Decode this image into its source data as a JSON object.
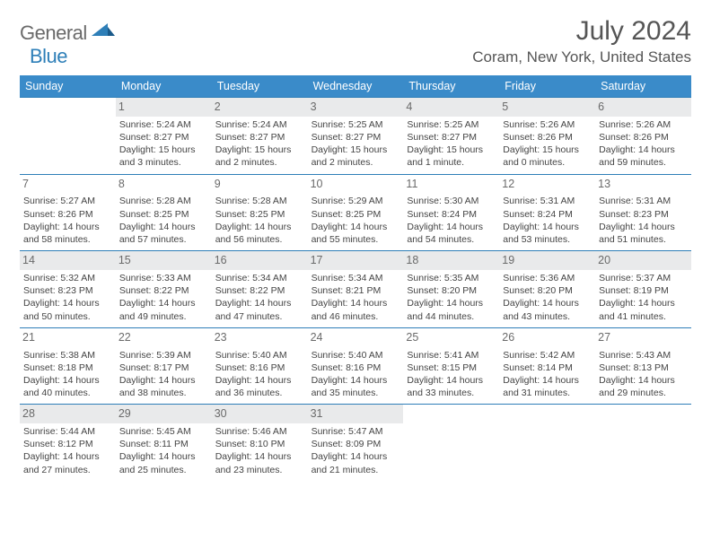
{
  "branding": {
    "logo_general": "General",
    "logo_blue": "Blue",
    "logo_color_gray": "#6a6a6a",
    "logo_color_blue": "#2e7fb8"
  },
  "title": {
    "month": "July 2024",
    "location": "Coram, New York, United States"
  },
  "colors": {
    "header_bg": "#3a8bc9",
    "header_text": "#ffffff",
    "daynum_bg_even": "#e9eaeb",
    "daynum_bg_odd": "#ffffff",
    "row_border": "#2e7fb8",
    "text": "#444444"
  },
  "days_of_week": [
    "Sunday",
    "Monday",
    "Tuesday",
    "Wednesday",
    "Thursday",
    "Friday",
    "Saturday"
  ],
  "cells": [
    {
      "day": "",
      "sunrise": "",
      "sunset": "",
      "daylight": ""
    },
    {
      "day": "1",
      "sunrise": "Sunrise: 5:24 AM",
      "sunset": "Sunset: 8:27 PM",
      "daylight": "Daylight: 15 hours and 3 minutes."
    },
    {
      "day": "2",
      "sunrise": "Sunrise: 5:24 AM",
      "sunset": "Sunset: 8:27 PM",
      "daylight": "Daylight: 15 hours and 2 minutes."
    },
    {
      "day": "3",
      "sunrise": "Sunrise: 5:25 AM",
      "sunset": "Sunset: 8:27 PM",
      "daylight": "Daylight: 15 hours and 2 minutes."
    },
    {
      "day": "4",
      "sunrise": "Sunrise: 5:25 AM",
      "sunset": "Sunset: 8:27 PM",
      "daylight": "Daylight: 15 hours and 1 minute."
    },
    {
      "day": "5",
      "sunrise": "Sunrise: 5:26 AM",
      "sunset": "Sunset: 8:26 PM",
      "daylight": "Daylight: 15 hours and 0 minutes."
    },
    {
      "day": "6",
      "sunrise": "Sunrise: 5:26 AM",
      "sunset": "Sunset: 8:26 PM",
      "daylight": "Daylight: 14 hours and 59 minutes."
    },
    {
      "day": "7",
      "sunrise": "Sunrise: 5:27 AM",
      "sunset": "Sunset: 8:26 PM",
      "daylight": "Daylight: 14 hours and 58 minutes."
    },
    {
      "day": "8",
      "sunrise": "Sunrise: 5:28 AM",
      "sunset": "Sunset: 8:25 PM",
      "daylight": "Daylight: 14 hours and 57 minutes."
    },
    {
      "day": "9",
      "sunrise": "Sunrise: 5:28 AM",
      "sunset": "Sunset: 8:25 PM",
      "daylight": "Daylight: 14 hours and 56 minutes."
    },
    {
      "day": "10",
      "sunrise": "Sunrise: 5:29 AM",
      "sunset": "Sunset: 8:25 PM",
      "daylight": "Daylight: 14 hours and 55 minutes."
    },
    {
      "day": "11",
      "sunrise": "Sunrise: 5:30 AM",
      "sunset": "Sunset: 8:24 PM",
      "daylight": "Daylight: 14 hours and 54 minutes."
    },
    {
      "day": "12",
      "sunrise": "Sunrise: 5:31 AM",
      "sunset": "Sunset: 8:24 PM",
      "daylight": "Daylight: 14 hours and 53 minutes."
    },
    {
      "day": "13",
      "sunrise": "Sunrise: 5:31 AM",
      "sunset": "Sunset: 8:23 PM",
      "daylight": "Daylight: 14 hours and 51 minutes."
    },
    {
      "day": "14",
      "sunrise": "Sunrise: 5:32 AM",
      "sunset": "Sunset: 8:23 PM",
      "daylight": "Daylight: 14 hours and 50 minutes."
    },
    {
      "day": "15",
      "sunrise": "Sunrise: 5:33 AM",
      "sunset": "Sunset: 8:22 PM",
      "daylight": "Daylight: 14 hours and 49 minutes."
    },
    {
      "day": "16",
      "sunrise": "Sunrise: 5:34 AM",
      "sunset": "Sunset: 8:22 PM",
      "daylight": "Daylight: 14 hours and 47 minutes."
    },
    {
      "day": "17",
      "sunrise": "Sunrise: 5:34 AM",
      "sunset": "Sunset: 8:21 PM",
      "daylight": "Daylight: 14 hours and 46 minutes."
    },
    {
      "day": "18",
      "sunrise": "Sunrise: 5:35 AM",
      "sunset": "Sunset: 8:20 PM",
      "daylight": "Daylight: 14 hours and 44 minutes."
    },
    {
      "day": "19",
      "sunrise": "Sunrise: 5:36 AM",
      "sunset": "Sunset: 8:20 PM",
      "daylight": "Daylight: 14 hours and 43 minutes."
    },
    {
      "day": "20",
      "sunrise": "Sunrise: 5:37 AM",
      "sunset": "Sunset: 8:19 PM",
      "daylight": "Daylight: 14 hours and 41 minutes."
    },
    {
      "day": "21",
      "sunrise": "Sunrise: 5:38 AM",
      "sunset": "Sunset: 8:18 PM",
      "daylight": "Daylight: 14 hours and 40 minutes."
    },
    {
      "day": "22",
      "sunrise": "Sunrise: 5:39 AM",
      "sunset": "Sunset: 8:17 PM",
      "daylight": "Daylight: 14 hours and 38 minutes."
    },
    {
      "day": "23",
      "sunrise": "Sunrise: 5:40 AM",
      "sunset": "Sunset: 8:16 PM",
      "daylight": "Daylight: 14 hours and 36 minutes."
    },
    {
      "day": "24",
      "sunrise": "Sunrise: 5:40 AM",
      "sunset": "Sunset: 8:16 PM",
      "daylight": "Daylight: 14 hours and 35 minutes."
    },
    {
      "day": "25",
      "sunrise": "Sunrise: 5:41 AM",
      "sunset": "Sunset: 8:15 PM",
      "daylight": "Daylight: 14 hours and 33 minutes."
    },
    {
      "day": "26",
      "sunrise": "Sunrise: 5:42 AM",
      "sunset": "Sunset: 8:14 PM",
      "daylight": "Daylight: 14 hours and 31 minutes."
    },
    {
      "day": "27",
      "sunrise": "Sunrise: 5:43 AM",
      "sunset": "Sunset: 8:13 PM",
      "daylight": "Daylight: 14 hours and 29 minutes."
    },
    {
      "day": "28",
      "sunrise": "Sunrise: 5:44 AM",
      "sunset": "Sunset: 8:12 PM",
      "daylight": "Daylight: 14 hours and 27 minutes."
    },
    {
      "day": "29",
      "sunrise": "Sunrise: 5:45 AM",
      "sunset": "Sunset: 8:11 PM",
      "daylight": "Daylight: 14 hours and 25 minutes."
    },
    {
      "day": "30",
      "sunrise": "Sunrise: 5:46 AM",
      "sunset": "Sunset: 8:10 PM",
      "daylight": "Daylight: 14 hours and 23 minutes."
    },
    {
      "day": "31",
      "sunrise": "Sunrise: 5:47 AM",
      "sunset": "Sunset: 8:09 PM",
      "daylight": "Daylight: 14 hours and 21 minutes."
    },
    {
      "day": "",
      "sunrise": "",
      "sunset": "",
      "daylight": ""
    },
    {
      "day": "",
      "sunrise": "",
      "sunset": "",
      "daylight": ""
    },
    {
      "day": "",
      "sunrise": "",
      "sunset": "",
      "daylight": ""
    }
  ]
}
